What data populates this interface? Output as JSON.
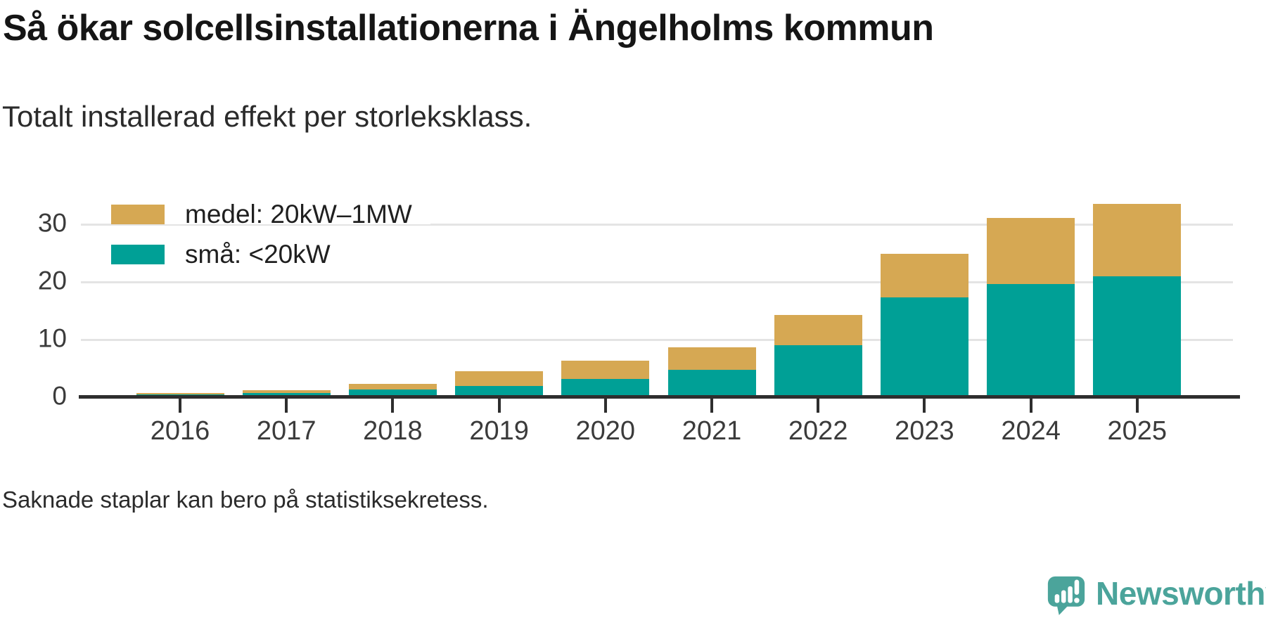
{
  "title": "Så ökar solcellsinstallationerna i Ängelholms kommun",
  "subtitle": "Totalt installerad effekt per storleksklass.",
  "footnote": "Saknade staplar kan bero på statistiksekretess.",
  "colors": {
    "medel": "#d6a853",
    "sma": "#00a096",
    "grid": "#e4e4e4",
    "axis": "#2e2e2e",
    "tick_text": "#3b3b3b",
    "logo_teal": "#4ba49b"
  },
  "logo": {
    "text": "Newsworthy",
    "icon": "speech-bubble-bar-chart-icon"
  },
  "chart_data": {
    "type": "bar",
    "stacked": true,
    "title": "Så ökar solcellsinstallationerna i Ängelholms kommun",
    "subtitle": "Totalt installerad effekt per storleksklass.",
    "categories": [
      "2016",
      "2017",
      "2018",
      "2019",
      "2020",
      "2021",
      "2022",
      "2023",
      "2024",
      "2025"
    ],
    "series": [
      {
        "name": "medel: 20kW–1MW",
        "color": "#d6a853",
        "values": [
          0.25,
          0.5,
          0.95,
          2.5,
          3.2,
          4.0,
          5.3,
          7.6,
          11.5,
          12.5
        ]
      },
      {
        "name": "små: <20kW",
        "color": "#00a096",
        "values": [
          0.5,
          0.7,
          1.35,
          2.0,
          3.2,
          4.7,
          9.0,
          17.3,
          19.6,
          21.0
        ]
      }
    ],
    "totals": [
      0.75,
      1.2,
      2.3,
      4.5,
      6.4,
      8.7,
      14.3,
      24.9,
      31.1,
      33.5
    ],
    "xlabel": "",
    "ylabel": "",
    "yticks": [
      0,
      10,
      20,
      30
    ],
    "ylim": [
      0,
      35
    ],
    "grid": "horizontal",
    "legend_position": "top-left-inside"
  }
}
